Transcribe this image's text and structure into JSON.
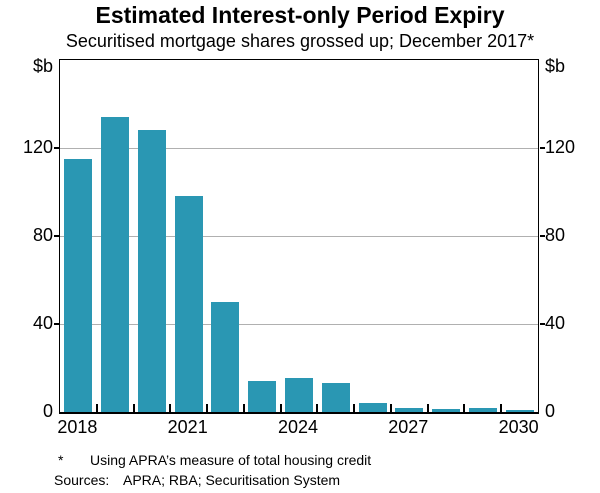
{
  "title": "Estimated Interest-only Period Expiry",
  "subtitle": "Securitised mortgage shares grossed up; December 2017*",
  "axis_units": {
    "left": "$b",
    "right": "$b"
  },
  "footnote": {
    "marker": "*",
    "text": "Using APRA’s measure of total housing credit"
  },
  "sources": {
    "label": "Sources:",
    "text": "APRA; RBA; Securitisation System"
  },
  "colors": {
    "bar": "#2a97b3",
    "gridline": "#b0b0b0",
    "axis": "#000000",
    "background": "#ffffff"
  },
  "chart_data": {
    "type": "bar",
    "title": "Estimated Interest-only Period Expiry",
    "subtitle": "Securitised mortgage shares grossed up; December 2017*",
    "unit": "$b",
    "categories": [
      2018,
      2019,
      2020,
      2021,
      2022,
      2023,
      2024,
      2025,
      2026,
      2027,
      2028,
      2029,
      2030
    ],
    "values": [
      115,
      134,
      128,
      98,
      50,
      14,
      15.5,
      13,
      4,
      2,
      1.5,
      2,
      0.7
    ],
    "xlabel": "",
    "ylabel": "$b",
    "ylim": [
      0,
      160
    ],
    "yticks": [
      0,
      40,
      80,
      120
    ],
    "xtick_labels": [
      "2018",
      "2021",
      "2024",
      "2027",
      "2030"
    ],
    "grid": "horizontal",
    "legend": "none",
    "bar_color": "#2a97b3"
  }
}
